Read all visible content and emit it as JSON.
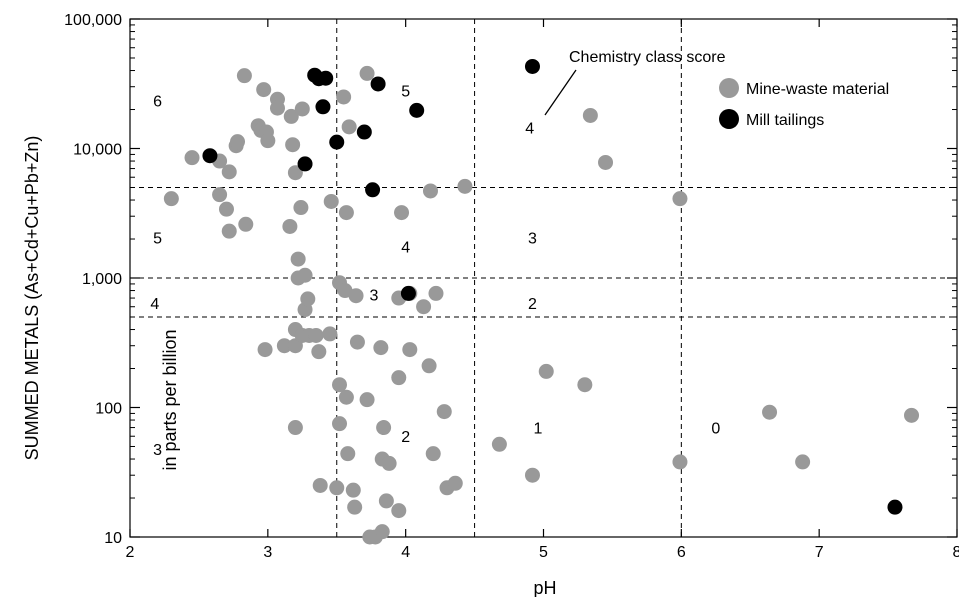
{
  "chart_data": {
    "type": "scatter",
    "xlabel": "pH",
    "ylabel": "SUMMED METALS (As+Cd+Cu+Pb+Zn)",
    "ylabel2": "in parts per billion",
    "xlim": [
      2,
      8
    ],
    "ylim": [
      10,
      100000
    ],
    "yscale": "log",
    "x_ticks": [
      "2",
      "3",
      "4",
      "5",
      "6",
      "7",
      "8"
    ],
    "y_ticks": [
      "10",
      "100",
      "1,000",
      "10,000",
      "100,000"
    ],
    "grid": "dashed class boundaries",
    "x_boundaries": [
      3.5,
      4.5,
      6.0
    ],
    "y_boundaries": [
      500,
      1000,
      5000
    ],
    "annotation": "Chemistry class score",
    "legend_position": "top-right",
    "series": [
      {
        "name": "Mine-waste material",
        "color": "#999999",
        "points": [
          [
            2.3,
            4100
          ],
          [
            2.45,
            8500
          ],
          [
            2.65,
            8000
          ],
          [
            2.65,
            4400
          ],
          [
            2.7,
            3400
          ],
          [
            2.72,
            6600
          ],
          [
            2.72,
            2300
          ],
          [
            2.77,
            10500
          ],
          [
            2.78,
            11300
          ],
          [
            2.83,
            36500
          ],
          [
            2.84,
            2600
          ],
          [
            2.93,
            15000
          ],
          [
            2.95,
            13800
          ],
          [
            2.97,
            28500
          ],
          [
            2.99,
            13400
          ],
          [
            3.0,
            11500
          ],
          [
            3.07,
            24000
          ],
          [
            3.07,
            20500
          ],
          [
            3.17,
            17700
          ],
          [
            3.16,
            2500
          ],
          [
            3.18,
            10700
          ],
          [
            3.2,
            6500
          ],
          [
            3.24,
            3500
          ],
          [
            3.25,
            20200
          ],
          [
            3.22,
            1400
          ],
          [
            3.22,
            1000
          ],
          [
            3.27,
            1050
          ],
          [
            3.27,
            570
          ],
          [
            3.29,
            690
          ],
          [
            2.98,
            280
          ],
          [
            3.12,
            300
          ],
          [
            3.2,
            300
          ],
          [
            3.2,
            400
          ],
          [
            3.25,
            360
          ],
          [
            3.3,
            360
          ],
          [
            3.35,
            360
          ],
          [
            3.37,
            270
          ],
          [
            3.45,
            370
          ],
          [
            3.46,
            3900
          ],
          [
            3.55,
            25000
          ],
          [
            3.57,
            3200
          ],
          [
            3.59,
            14700
          ],
          [
            3.52,
            920
          ],
          [
            3.56,
            800
          ],
          [
            3.64,
            730
          ],
          [
            3.65,
            320
          ],
          [
            3.72,
            38000
          ],
          [
            3.82,
            290
          ],
          [
            3.52,
            150
          ],
          [
            3.57,
            120
          ],
          [
            3.72,
            115
          ],
          [
            3.52,
            75
          ],
          [
            3.58,
            44
          ],
          [
            3.84,
            70
          ],
          [
            3.83,
            40
          ],
          [
            3.88,
            37
          ],
          [
            3.2,
            70
          ],
          [
            3.38,
            25
          ],
          [
            3.5,
            24
          ],
          [
            3.62,
            23
          ],
          [
            3.63,
            17
          ],
          [
            3.86,
            19
          ],
          [
            3.95,
            16
          ],
          [
            3.83,
            11
          ],
          [
            3.78,
            10
          ],
          [
            3.74,
            10
          ],
          [
            3.95,
            700
          ],
          [
            4.03,
            760
          ],
          [
            4.13,
            600
          ],
          [
            4.22,
            760
          ],
          [
            4.03,
            280
          ],
          [
            3.95,
            170
          ],
          [
            4.17,
            210
          ],
          [
            4.28,
            93
          ],
          [
            4.2,
            44
          ],
          [
            4.3,
            24
          ],
          [
            4.36,
            26
          ],
          [
            3.97,
            3200
          ],
          [
            4.18,
            4700
          ],
          [
            4.43,
            5100
          ],
          [
            4.68,
            52
          ],
          [
            4.92,
            30
          ],
          [
            5.02,
            190
          ],
          [
            5.3,
            150
          ],
          [
            5.34,
            18000
          ],
          [
            5.45,
            7800
          ],
          [
            5.99,
            4100
          ],
          [
            5.99,
            38
          ],
          [
            6.64,
            92
          ],
          [
            6.88,
            38
          ],
          [
            7.67,
            87
          ]
        ]
      },
      {
        "name": "Mill tailings",
        "color": "#000000",
        "points": [
          [
            2.58,
            8800
          ],
          [
            3.27,
            7600
          ],
          [
            3.34,
            36800
          ],
          [
            3.37,
            34600
          ],
          [
            3.42,
            34900
          ],
          [
            3.4,
            21000
          ],
          [
            3.5,
            11200
          ],
          [
            3.7,
            13400
          ],
          [
            3.76,
            4800
          ],
          [
            3.8,
            31500
          ],
          [
            4.08,
            19700
          ],
          [
            4.02,
            760
          ],
          [
            4.92,
            43000
          ],
          [
            7.55,
            17
          ]
        ]
      }
    ],
    "zone_scores": [
      {
        "text": "6",
        "x": 2.2,
        "y": 23500
      },
      {
        "text": "5",
        "x": 4.0,
        "y": 28000
      },
      {
        "text": "4",
        "x": 4.9,
        "y": 14500
      },
      {
        "text": "5",
        "x": 2.2,
        "y": 2050
      },
      {
        "text": "4",
        "x": 4.0,
        "y": 1750
      },
      {
        "text": "3",
        "x": 4.92,
        "y": 2050
      },
      {
        "text": "4",
        "x": 2.18,
        "y": 640
      },
      {
        "text": "3",
        "x": 3.77,
        "y": 745
      },
      {
        "text": "2",
        "x": 4.92,
        "y": 640
      },
      {
        "text": "2",
        "x": 4.0,
        "y": 60
      },
      {
        "text": "1",
        "x": 4.96,
        "y": 70
      },
      {
        "text": "0",
        "x": 6.25,
        "y": 70
      },
      {
        "text": "3",
        "x": 2.2,
        "y": 48
      }
    ]
  }
}
